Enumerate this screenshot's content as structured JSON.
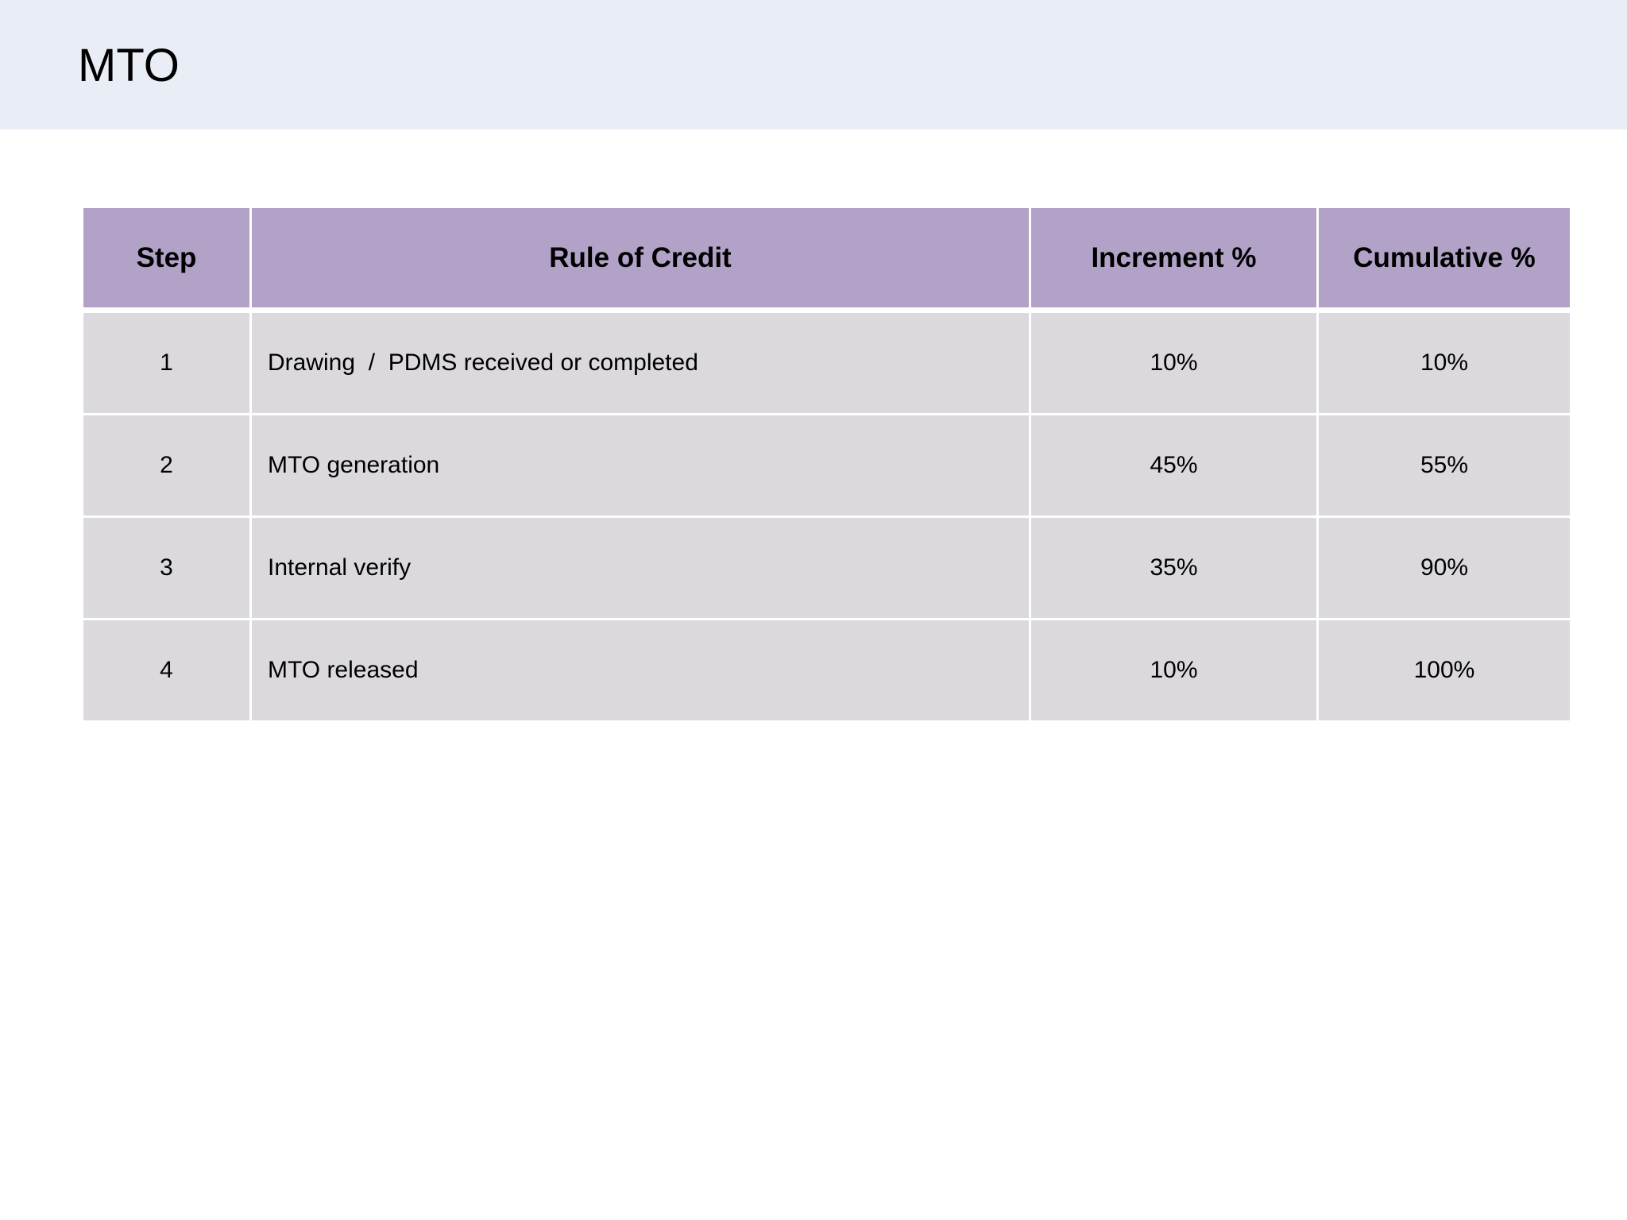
{
  "header": {
    "title": "MTO"
  },
  "table": {
    "columns": [
      "Step",
      "Rule of Credit",
      "Increment %",
      "Cumulative %"
    ],
    "rows": [
      [
        "1",
        "Drawing  /  PDMS received or completed",
        "10%",
        "10%"
      ],
      [
        "2",
        "MTO generation",
        "45%",
        "55%"
      ],
      [
        "3",
        "Internal verify",
        "35%",
        "90%"
      ],
      [
        "4",
        "MTO released",
        "10%",
        "100%"
      ]
    ]
  }
}
